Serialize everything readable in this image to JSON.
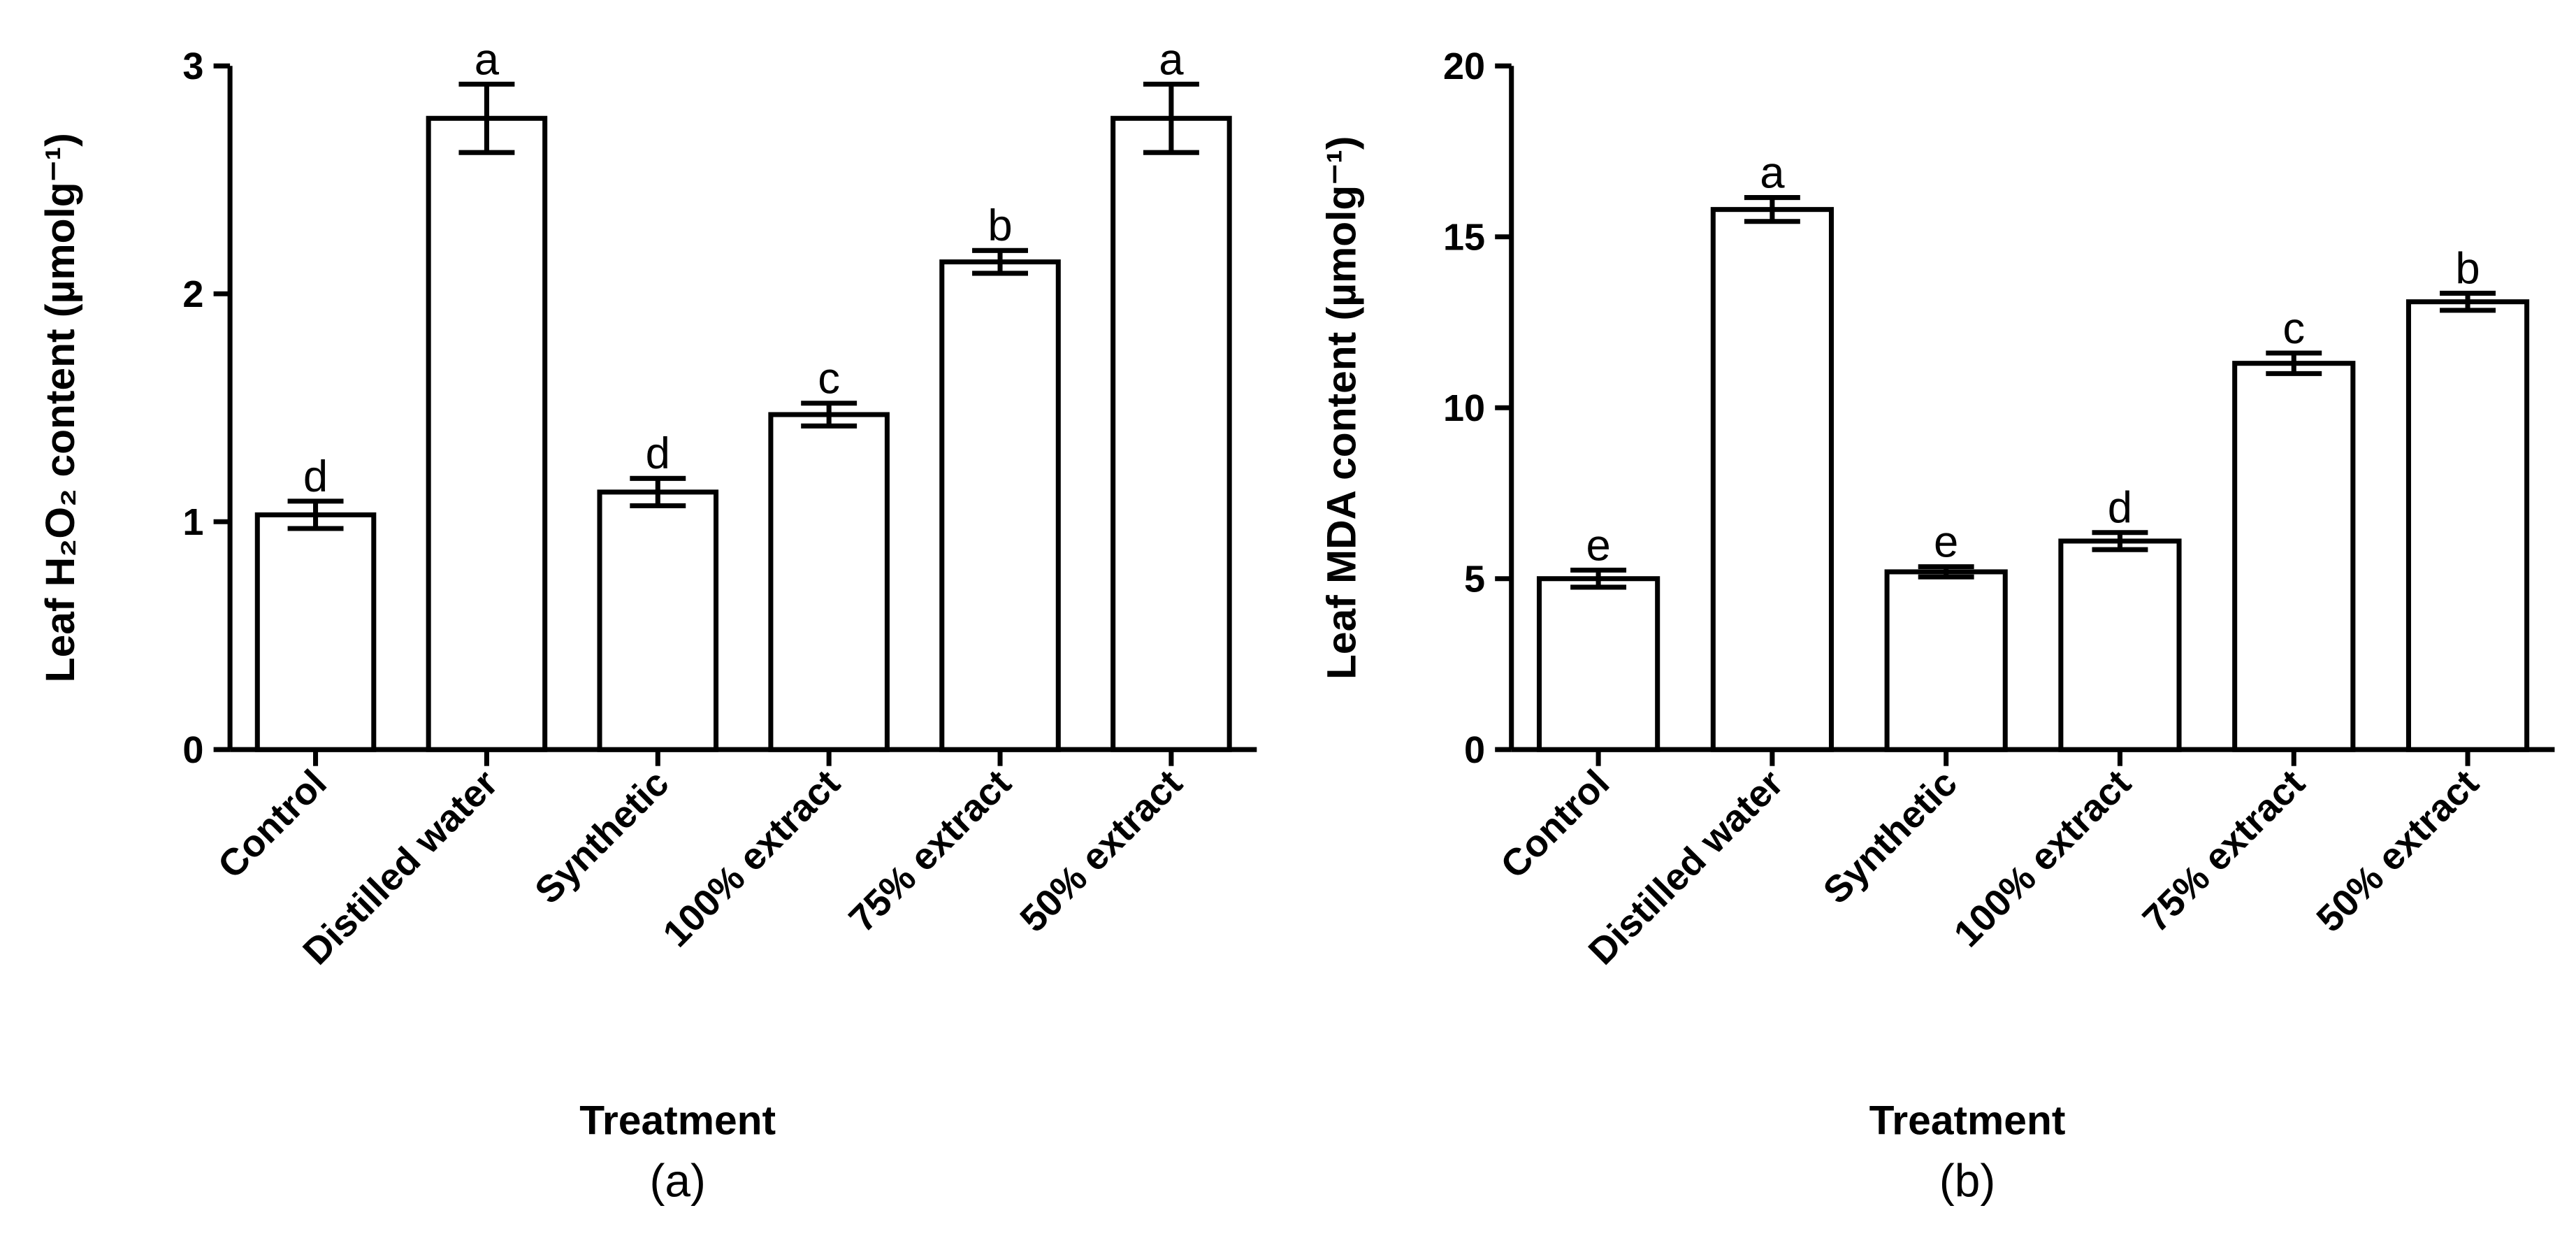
{
  "chart_data": [
    {
      "type": "bar",
      "panel": "(a)",
      "ylabel": "Leaf H₂O₂ content (µmolg⁻¹)",
      "xlabel": "Treatment",
      "categories": [
        "Control",
        "Distilled water",
        "Synthetic",
        "100% extract",
        "75% extract",
        "50% extract"
      ],
      "values": [
        1.03,
        2.77,
        1.13,
        1.47,
        2.14,
        2.77
      ],
      "errors": [
        0.06,
        0.15,
        0.06,
        0.05,
        0.05,
        0.15
      ],
      "letters": [
        "d",
        "a",
        "d",
        "c",
        "b",
        "a"
      ],
      "color": "#ffffff",
      "ylim": [
        0,
        3
      ],
      "yticks": [
        0,
        1,
        2,
        3
      ]
    },
    {
      "type": "bar",
      "panel": "(b)",
      "ylabel": "Leaf MDA content (µmolg⁻¹)",
      "xlabel": "Treatment",
      "categories": [
        "Control",
        "Distilled water",
        "Synthetic",
        "100% extract",
        "75% extract",
        "50% extract"
      ],
      "values": [
        5.0,
        15.8,
        5.2,
        6.1,
        11.3,
        13.1
      ],
      "errors": [
        0.25,
        0.35,
        0.15,
        0.25,
        0.3,
        0.25
      ],
      "letters": [
        "e",
        "a",
        "e",
        "d",
        "c",
        "b"
      ],
      "color": "#ffffff",
      "ylim": [
        0,
        20
      ],
      "yticks": [
        0,
        5,
        10,
        15,
        20
      ]
    }
  ]
}
